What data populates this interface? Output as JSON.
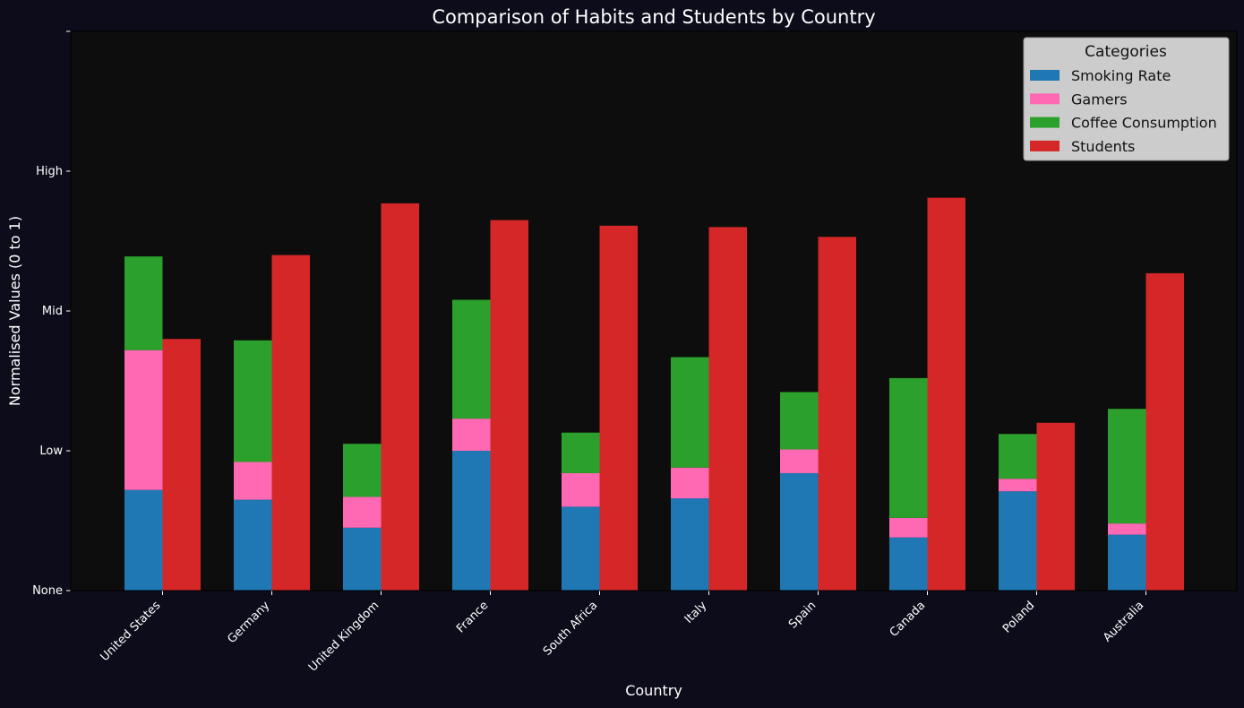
{
  "colors": {
    "figure_bg": "#0c0c1b",
    "axes_bg": "#0d0d0d",
    "text": "#ffffff",
    "legend_bg": "#cccccc",
    "legend_text": "#111111"
  },
  "chart_data": {
    "type": "bar",
    "title": "Comparison of Habits and Students by Country",
    "xlabel": "Country",
    "ylabel": "Normalised Values (0 to 1)",
    "ylim": [
      0,
      2
    ],
    "yticks": [
      {
        "value": 0,
        "label": "None"
      },
      {
        "value": 0.5,
        "label": "Low"
      },
      {
        "value": 1,
        "label": "Mid"
      },
      {
        "value": 1.5,
        "label": "High"
      },
      {
        "value": 2,
        "label": ""
      }
    ],
    "grid": false,
    "legend_title": "Categories",
    "legend_position": "top-right",
    "categories": [
      "United States",
      "Germany",
      "United Kingdom",
      "France",
      "South Africa",
      "Italy",
      "Spain",
      "Canada",
      "Poland",
      "Australia"
    ],
    "stacked_series": [
      {
        "name": "Smoking Rate",
        "color": "#1f77b4",
        "values": [
          0.36,
          0.325,
          0.225,
          0.5,
          0.3,
          0.33,
          0.42,
          0.19,
          0.355,
          0.2
        ]
      },
      {
        "name": "Gamers",
        "color": "#ff69b4",
        "values": [
          0.5,
          0.135,
          0.11,
          0.115,
          0.12,
          0.11,
          0.085,
          0.07,
          0.045,
          0.04
        ]
      },
      {
        "name": "Coffee Consumption",
        "color": "#2ca02c",
        "values": [
          0.335,
          0.435,
          0.19,
          0.425,
          0.145,
          0.395,
          0.205,
          0.5,
          0.16,
          0.41
        ]
      }
    ],
    "side_series": [
      {
        "name": "Students",
        "color": "#d62728",
        "values": [
          0.9,
          1.2,
          1.385,
          1.325,
          1.305,
          1.3,
          1.265,
          1.405,
          0.6,
          1.135
        ]
      }
    ]
  }
}
